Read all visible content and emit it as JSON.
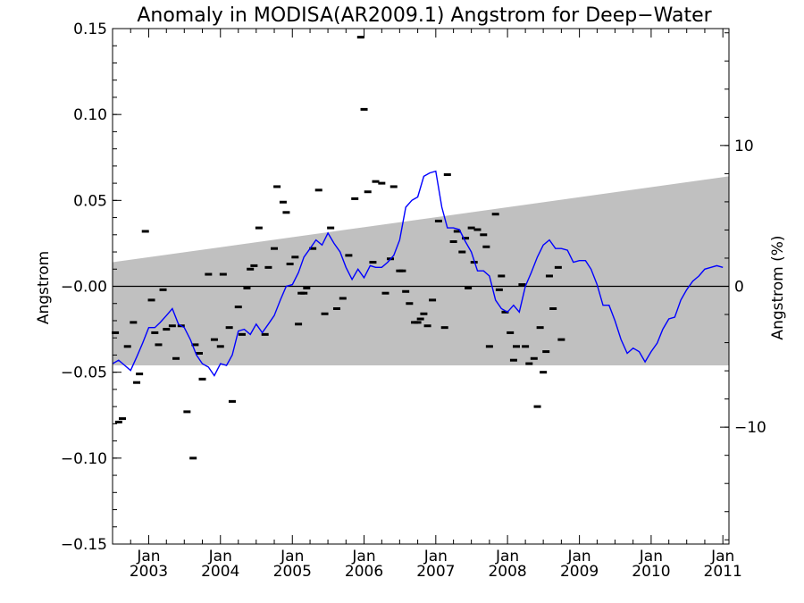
{
  "chart_data": {
    "type": "scatter",
    "title": "Anomaly in MODISA(AR2009.1) Angstrom for Deep−Water",
    "ylabel": "Angstrom",
    "ylabel_right": "Angstrom (%)",
    "xlim": [
      "2002-07-01",
      "2011-02-01"
    ],
    "ylim": [
      -0.15,
      0.15
    ],
    "ylim_right_percent": [
      -18.3,
      18.3
    ],
    "x_ticks": [
      {
        "date": "2003-01-01",
        "month": "Jan",
        "year": "2003"
      },
      {
        "date": "2004-01-01",
        "month": "Jan",
        "year": "2004"
      },
      {
        "date": "2005-01-01",
        "month": "Jan",
        "year": "2005"
      },
      {
        "date": "2006-01-01",
        "month": "Jan",
        "year": "2006"
      },
      {
        "date": "2007-01-01",
        "month": "Jan",
        "year": "2007"
      },
      {
        "date": "2008-01-01",
        "month": "Jan",
        "year": "2008"
      },
      {
        "date": "2009-01-01",
        "month": "Jan",
        "year": "2009"
      },
      {
        "date": "2010-01-01",
        "month": "Jan",
        "year": "2010"
      },
      {
        "date": "2011-01-01",
        "month": "Jan",
        "year": "2011"
      }
    ],
    "y_ticks": [
      {
        "value": 0.15,
        "label": "0.15"
      },
      {
        "value": 0.1,
        "label": "0.10"
      },
      {
        "value": 0.05,
        "label": "0.05"
      },
      {
        "value": 0.0,
        "label": "−0.00"
      },
      {
        "value": -0.05,
        "label": "−0.05"
      },
      {
        "value": -0.1,
        "label": "−0.10"
      },
      {
        "value": -0.15,
        "label": "−0.15"
      }
    ],
    "y_right_ticks": [
      {
        "value": 10,
        "label": "10"
      },
      {
        "value": 0,
        "label": "0"
      },
      {
        "value": -10,
        "label": "−10"
      }
    ],
    "band": {
      "start_date": "2002-07-01",
      "end_date": "2011-02-01",
      "upper": [
        0.014,
        0.064
      ],
      "lower": [
        -0.046,
        -0.046
      ],
      "color": "#c0c0c0"
    },
    "zero_line": 0.0,
    "series": [
      {
        "kind": "points",
        "marker": "dash",
        "color": "#000000",
        "points": [
          [
            "2002-07-15",
            -0.027
          ],
          [
            "2002-08-01",
            -0.079
          ],
          [
            "2002-08-20",
            -0.077
          ],
          [
            "2002-09-15",
            -0.035
          ],
          [
            "2002-10-15",
            -0.021
          ],
          [
            "2002-11-01",
            -0.056
          ],
          [
            "2002-11-15",
            -0.051
          ],
          [
            "2002-12-15",
            0.032
          ],
          [
            "2003-01-15",
            -0.008
          ],
          [
            "2003-02-01",
            -0.027
          ],
          [
            "2003-02-20",
            -0.034
          ],
          [
            "2003-03-15",
            -0.002
          ],
          [
            "2003-04-01",
            -0.025
          ],
          [
            "2003-05-01",
            -0.023
          ],
          [
            "2003-05-20",
            -0.042
          ],
          [
            "2003-06-15",
            -0.023
          ],
          [
            "2003-07-15",
            -0.073
          ],
          [
            "2003-08-15",
            -0.1
          ],
          [
            "2003-08-25",
            -0.034
          ],
          [
            "2003-09-15",
            -0.039
          ],
          [
            "2003-10-01",
            -0.054
          ],
          [
            "2003-11-01",
            0.007
          ],
          [
            "2003-12-01",
            -0.031
          ],
          [
            "2004-01-01",
            -0.035
          ],
          [
            "2004-01-15",
            0.007
          ],
          [
            "2004-02-15",
            -0.024
          ],
          [
            "2004-03-01",
            -0.067
          ],
          [
            "2004-04-01",
            -0.012
          ],
          [
            "2004-04-20",
            -0.028
          ],
          [
            "2004-05-15",
            -0.001
          ],
          [
            "2004-06-01",
            0.01
          ],
          [
            "2004-06-20",
            0.012
          ],
          [
            "2004-07-15",
            0.034
          ],
          [
            "2004-08-15",
            -0.028
          ],
          [
            "2004-09-01",
            0.011
          ],
          [
            "2004-10-01",
            0.022
          ],
          [
            "2004-10-15",
            0.058
          ],
          [
            "2004-11-15",
            0.049
          ],
          [
            "2004-12-01",
            0.043
          ],
          [
            "2004-12-20",
            0.013
          ],
          [
            "2005-01-15",
            0.017
          ],
          [
            "2005-02-01",
            -0.022
          ],
          [
            "2005-02-15",
            -0.004
          ],
          [
            "2005-03-01",
            -0.004
          ],
          [
            "2005-03-15",
            -0.001
          ],
          [
            "2005-04-15",
            0.022
          ],
          [
            "2005-05-15",
            0.056
          ],
          [
            "2005-06-15",
            -0.016
          ],
          [
            "2005-07-15",
            0.034
          ],
          [
            "2005-08-15",
            -0.013
          ],
          [
            "2005-09-15",
            -0.007
          ],
          [
            "2005-10-15",
            0.018
          ],
          [
            "2005-11-15",
            0.051
          ],
          [
            "2005-12-15",
            0.145
          ],
          [
            "2006-01-01",
            0.103
          ],
          [
            "2006-01-20",
            0.055
          ],
          [
            "2006-02-15",
            0.014
          ],
          [
            "2006-03-01",
            0.061
          ],
          [
            "2006-04-01",
            0.06
          ],
          [
            "2006-04-20",
            -0.004
          ],
          [
            "2006-05-15",
            0.016
          ],
          [
            "2006-06-01",
            0.058
          ],
          [
            "2006-07-01",
            0.009
          ],
          [
            "2006-07-15",
            0.009
          ],
          [
            "2006-08-01",
            -0.003
          ],
          [
            "2006-08-20",
            -0.01
          ],
          [
            "2006-09-15",
            -0.021
          ],
          [
            "2006-10-01",
            -0.021
          ],
          [
            "2006-10-15",
            -0.019
          ],
          [
            "2006-11-01",
            -0.016
          ],
          [
            "2006-11-20",
            -0.023
          ],
          [
            "2006-12-15",
            -0.008
          ],
          [
            "2007-01-15",
            0.038
          ],
          [
            "2007-02-15",
            -0.024
          ],
          [
            "2007-03-01",
            0.065
          ],
          [
            "2007-04-01",
            0.026
          ],
          [
            "2007-04-20",
            0.032
          ],
          [
            "2007-05-15",
            0.02
          ],
          [
            "2007-06-01",
            0.028
          ],
          [
            "2007-06-15",
            -0.001
          ],
          [
            "2007-07-01",
            0.034
          ],
          [
            "2007-07-15",
            0.014
          ],
          [
            "2007-08-01",
            0.033
          ],
          [
            "2007-09-01",
            0.03
          ],
          [
            "2007-09-15",
            0.023
          ],
          [
            "2007-10-01",
            -0.035
          ],
          [
            "2007-11-01",
            0.042
          ],
          [
            "2007-11-20",
            -0.002
          ],
          [
            "2007-12-01",
            0.006
          ],
          [
            "2007-12-20",
            -0.015
          ],
          [
            "2008-01-15",
            -0.027
          ],
          [
            "2008-02-01",
            -0.043
          ],
          [
            "2008-02-15",
            -0.035
          ],
          [
            "2008-03-15",
            0.001
          ],
          [
            "2008-04-01",
            -0.035
          ],
          [
            "2008-04-20",
            -0.045
          ],
          [
            "2008-05-15",
            -0.042
          ],
          [
            "2008-06-01",
            -0.07
          ],
          [
            "2008-06-15",
            -0.024
          ],
          [
            "2008-07-01",
            -0.05
          ],
          [
            "2008-07-15",
            -0.038
          ],
          [
            "2008-08-01",
            0.006
          ],
          [
            "2008-08-20",
            -0.013
          ],
          [
            "2008-09-15",
            0.011
          ],
          [
            "2008-10-01",
            -0.031
          ]
        ]
      },
      {
        "kind": "line",
        "color": "#0000ff",
        "points": [
          [
            "2002-07-01",
            -0.045
          ],
          [
            "2002-08-01",
            -0.043
          ],
          [
            "2002-09-01",
            -0.046
          ],
          [
            "2002-10-01",
            -0.049
          ],
          [
            "2002-11-01",
            -0.041
          ],
          [
            "2002-12-01",
            -0.033
          ],
          [
            "2003-01-01",
            -0.024
          ],
          [
            "2003-02-01",
            -0.024
          ],
          [
            "2003-03-01",
            -0.021
          ],
          [
            "2003-04-01",
            -0.017
          ],
          [
            "2003-05-01",
            -0.013
          ],
          [
            "2003-06-01",
            -0.022
          ],
          [
            "2003-07-01",
            -0.024
          ],
          [
            "2003-08-01",
            -0.031
          ],
          [
            "2003-09-01",
            -0.04
          ],
          [
            "2003-10-01",
            -0.045
          ],
          [
            "2003-11-01",
            -0.047
          ],
          [
            "2003-12-01",
            -0.052
          ],
          [
            "2004-01-01",
            -0.045
          ],
          [
            "2004-02-01",
            -0.046
          ],
          [
            "2004-03-01",
            -0.04
          ],
          [
            "2004-04-01",
            -0.026
          ],
          [
            "2004-05-01",
            -0.025
          ],
          [
            "2004-06-01",
            -0.028
          ],
          [
            "2004-07-01",
            -0.022
          ],
          [
            "2004-08-01",
            -0.027
          ],
          [
            "2004-09-01",
            -0.022
          ],
          [
            "2004-10-01",
            -0.017
          ],
          [
            "2004-11-01",
            -0.008
          ],
          [
            "2004-12-01",
            0.0
          ],
          [
            "2005-01-01",
            0.001
          ],
          [
            "2005-02-01",
            0.008
          ],
          [
            "2005-03-01",
            0.017
          ],
          [
            "2005-04-01",
            0.022
          ],
          [
            "2005-05-01",
            0.027
          ],
          [
            "2005-06-01",
            0.024
          ],
          [
            "2005-07-01",
            0.031
          ],
          [
            "2005-08-01",
            0.025
          ],
          [
            "2005-09-01",
            0.02
          ],
          [
            "2005-10-01",
            0.011
          ],
          [
            "2005-11-01",
            0.004
          ],
          [
            "2005-12-01",
            0.01
          ],
          [
            "2006-01-01",
            0.005
          ],
          [
            "2006-02-01",
            0.012
          ],
          [
            "2006-03-01",
            0.011
          ],
          [
            "2006-04-01",
            0.011
          ],
          [
            "2006-05-01",
            0.014
          ],
          [
            "2006-06-01",
            0.018
          ],
          [
            "2006-07-01",
            0.027
          ],
          [
            "2006-08-01",
            0.046
          ],
          [
            "2006-09-01",
            0.05
          ],
          [
            "2006-10-01",
            0.052
          ],
          [
            "2006-11-01",
            0.064
          ],
          [
            "2006-12-01",
            0.066
          ],
          [
            "2007-01-01",
            0.067
          ],
          [
            "2007-02-01",
            0.046
          ],
          [
            "2007-03-01",
            0.034
          ],
          [
            "2007-04-01",
            0.034
          ],
          [
            "2007-05-01",
            0.033
          ],
          [
            "2007-06-01",
            0.026
          ],
          [
            "2007-07-01",
            0.02
          ],
          [
            "2007-08-01",
            0.009
          ],
          [
            "2007-09-01",
            0.009
          ],
          [
            "2007-10-01",
            0.006
          ],
          [
            "2007-11-01",
            -0.008
          ],
          [
            "2007-12-01",
            -0.013
          ],
          [
            "2008-01-01",
            -0.015
          ],
          [
            "2008-02-01",
            -0.011
          ],
          [
            "2008-03-01",
            -0.015
          ],
          [
            "2008-04-01",
            0.0
          ],
          [
            "2008-05-01",
            0.008
          ],
          [
            "2008-06-01",
            0.017
          ],
          [
            "2008-07-01",
            0.024
          ],
          [
            "2008-08-01",
            0.027
          ],
          [
            "2008-09-01",
            0.022
          ],
          [
            "2008-10-01",
            0.022
          ],
          [
            "2008-11-01",
            0.021
          ],
          [
            "2008-12-01",
            0.014
          ],
          [
            "2009-01-01",
            0.015
          ],
          [
            "2009-02-01",
            0.015
          ],
          [
            "2009-03-01",
            0.01
          ],
          [
            "2009-04-01",
            0.001
          ],
          [
            "2009-05-01",
            -0.011
          ],
          [
            "2009-06-01",
            -0.011
          ],
          [
            "2009-07-01",
            -0.02
          ],
          [
            "2009-08-01",
            -0.031
          ],
          [
            "2009-09-01",
            -0.039
          ],
          [
            "2009-10-01",
            -0.036
          ],
          [
            "2009-11-01",
            -0.038
          ],
          [
            "2009-12-01",
            -0.044
          ],
          [
            "2010-01-01",
            -0.038
          ],
          [
            "2010-02-01",
            -0.033
          ],
          [
            "2010-03-01",
            -0.025
          ],
          [
            "2010-04-01",
            -0.019
          ],
          [
            "2010-05-01",
            -0.018
          ],
          [
            "2010-06-01",
            -0.008
          ],
          [
            "2010-07-01",
            -0.002
          ],
          [
            "2010-08-01",
            0.003
          ],
          [
            "2010-09-01",
            0.006
          ],
          [
            "2010-10-01",
            0.01
          ],
          [
            "2010-11-01",
            0.011
          ],
          [
            "2010-12-01",
            0.012
          ],
          [
            "2011-01-01",
            0.011
          ]
        ]
      }
    ]
  }
}
